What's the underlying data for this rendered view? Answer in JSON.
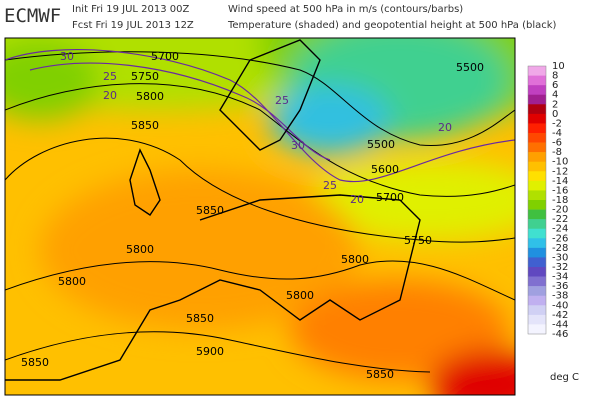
{
  "header": {
    "logo": "ECMWF",
    "init": "Init  Fri 19 JUL 2013 00Z",
    "fcst": "Fcst Fri 19 JUL 2013 12Z",
    "line1": "Wind speed at 500 hPa in m/s (contours/barbs)",
    "line2": "Temperature (shaded) and geopotential height at 500 hPa (black)"
  },
  "height_labels": [
    "5700",
    "5750",
    "5800",
    "5850",
    "5850",
    "5800",
    "5800",
    "5850",
    "5900",
    "5850",
    "5800",
    "5800",
    "5750",
    "5700",
    "5600",
    "5500",
    "5500",
    "5850"
  ],
  "wind_labels": [
    "30",
    "25",
    "20",
    "25",
    "30",
    "20",
    "25",
    "20"
  ],
  "colorbar": {
    "labels": [
      10,
      8,
      6,
      4,
      2,
      0,
      -2,
      -4,
      -6,
      -8,
      -10,
      -12,
      -14,
      -16,
      -18,
      -20,
      -22,
      -24,
      -26,
      -28,
      -30,
      -32,
      -34,
      -36,
      -38,
      -40,
      -42,
      -44,
      -46
    ],
    "colors": [
      "#f0a8e8",
      "#e070d8",
      "#c040c0",
      "#a02090",
      "#b00010",
      "#e00000",
      "#ff2000",
      "#ff4800",
      "#ff7000",
      "#ffa000",
      "#ffc000",
      "#ffe000",
      "#e0f000",
      "#b0e000",
      "#80d000",
      "#40c040",
      "#40d090",
      "#40e0d0",
      "#30c0e8",
      "#2090e0",
      "#4060d0",
      "#6048c0",
      "#8070d0",
      "#a0a0e0",
      "#c0b0f0",
      "#d0d0f4",
      "#e4e4fa",
      "#f4f4ff"
    ],
    "unit": "deg C"
  }
}
